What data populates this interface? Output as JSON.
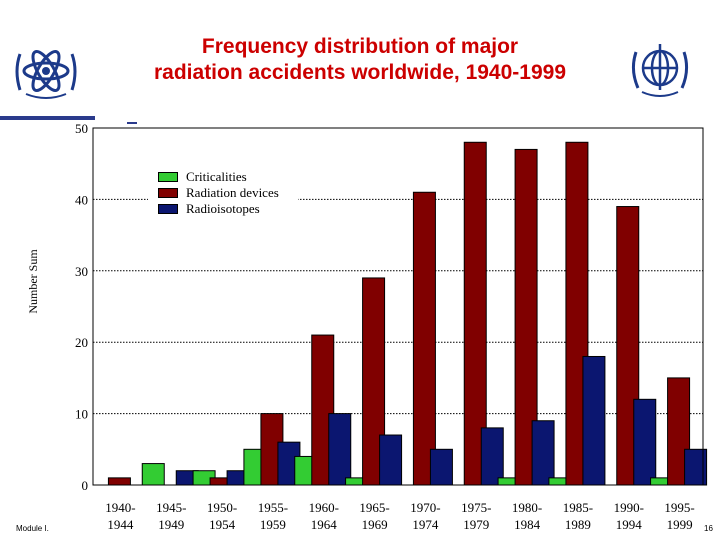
{
  "title": {
    "line1": "Frequency distribution of major",
    "line2": "radiation accidents worldwide, 1940-1999"
  },
  "logos": {
    "left": "atom-emblem-logo",
    "right": "globe-emblem-logo"
  },
  "footer": {
    "left": "Module I.",
    "page_number": "16"
  },
  "colors": {
    "criticalities": "#33cc33",
    "radiation_devices": "#800000",
    "radioisotopes": "#0b1670",
    "title": "#cc0000",
    "accent_rule": "#2a3a8c"
  },
  "chart_data": {
    "type": "bar",
    "ylabel": "Number Sum",
    "xlabel": "",
    "ylim": [
      0,
      50
    ],
    "yticks": [
      0,
      10,
      20,
      30,
      40,
      50
    ],
    "grid": "horizontal dotted",
    "legend_placement": "top-left inside plot",
    "categories": [
      [
        "1940-",
        "1944"
      ],
      [
        "1945-",
        "1949"
      ],
      [
        "1950-",
        "1954"
      ],
      [
        "1955-",
        "1959"
      ],
      [
        "1960-",
        "1964"
      ],
      [
        "1965-",
        "1969"
      ],
      [
        "1970-",
        "1974"
      ],
      [
        "1975-",
        "1979"
      ],
      [
        "1980-",
        "1984"
      ],
      [
        "1985-",
        "1989"
      ],
      [
        "1990-",
        "1994"
      ],
      [
        "1995-",
        "1999"
      ]
    ],
    "series": [
      {
        "name": "Criticalities",
        "values": [
          0,
          3,
          2,
          5,
          4,
          1,
          0,
          0,
          1,
          1,
          0,
          1
        ]
      },
      {
        "name": "Radiation devices",
        "values": [
          1,
          0,
          1,
          10,
          21,
          29,
          41,
          48,
          47,
          48,
          39,
          15
        ]
      },
      {
        "name": "Radioisotopes",
        "values": [
          0,
          2,
          2,
          6,
          10,
          7,
          5,
          8,
          9,
          18,
          12,
          5
        ]
      }
    ]
  }
}
